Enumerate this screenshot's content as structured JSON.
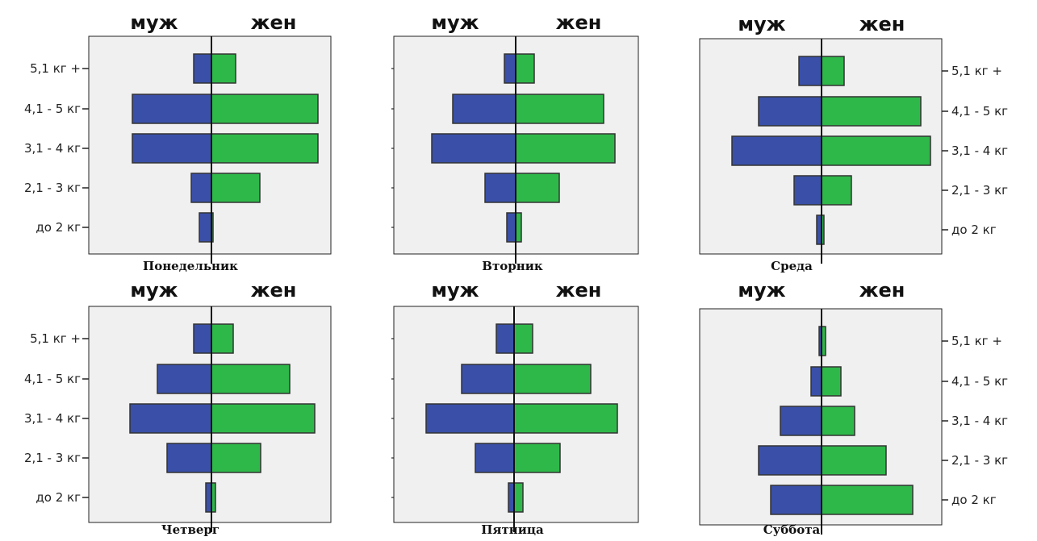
{
  "chart_data": [
    {
      "type": "bar",
      "title": "Понедельник",
      "categories": [
        "5,1 кг +",
        "4,1 - 5 кг",
        "3,1 - 4 кг",
        "2,1 - 3 кг",
        "до 2 кг"
      ],
      "series": [
        {
          "name": "муж",
          "values": [
            22,
            98,
            98,
            25,
            15
          ]
        },
        {
          "name": "жен",
          "values": [
            30,
            132,
            132,
            60,
            2
          ]
        }
      ],
      "category_axis_side": "left"
    },
    {
      "type": "bar",
      "title": "Вторник",
      "categories": [
        "5,1 кг +",
        "4,1 - 5 кг",
        "3,1 - 4 кг",
        "2,1 - 3 кг",
        "до 2 кг"
      ],
      "series": [
        {
          "name": "муж",
          "values": [
            14,
            78,
            104,
            38,
            11
          ]
        },
        {
          "name": "жен",
          "values": [
            23,
            109,
            123,
            54,
            7
          ]
        }
      ],
      "category_axis_side": "none"
    },
    {
      "type": "bar",
      "title": "Среда",
      "categories": [
        "5,1 кг +",
        "4,1 - 5 кг",
        "3,1 - 4 кг",
        "2,1 - 3 кг",
        "до 2 кг"
      ],
      "series": [
        {
          "name": "муж",
          "values": [
            28,
            78,
            111,
            34,
            6
          ]
        },
        {
          "name": "жен",
          "values": [
            28,
            123,
            135,
            37,
            3
          ]
        }
      ],
      "category_axis_side": "right"
    },
    {
      "type": "bar",
      "title": "Четверг",
      "categories": [
        "5,1 кг +",
        "4,1 - 5 кг",
        "3,1 - 4 кг",
        "2,1 - 3 кг",
        "до 2 кг"
      ],
      "series": [
        {
          "name": "муж",
          "values": [
            22,
            67,
            101,
            55,
            7
          ]
        },
        {
          "name": "жен",
          "values": [
            27,
            97,
            128,
            61,
            5
          ]
        }
      ],
      "category_axis_side": "left"
    },
    {
      "type": "bar",
      "title": "Пятница",
      "categories": [
        "5,1 кг +",
        "4,1 - 5 кг",
        "3,1 - 4 кг",
        "2,1 - 3 кг",
        "до 2 кг"
      ],
      "series": [
        {
          "name": "муж",
          "values": [
            22,
            65,
            109,
            48,
            7
          ]
        },
        {
          "name": "жен",
          "values": [
            23,
            95,
            128,
            57,
            11
          ]
        }
      ],
      "category_axis_side": "none"
    },
    {
      "type": "bar",
      "title": "Суббота",
      "categories": [
        "5,1 кг +",
        "4,1 - 5 кг",
        "3,1 - 4 кг",
        "2,1 - 3 кг",
        "до 2 кг"
      ],
      "series": [
        {
          "name": "муж",
          "values": [
            3,
            13,
            51,
            78,
            63
          ]
        },
        {
          "name": "жен",
          "values": [
            5,
            24,
            41,
            80,
            113
          ]
        }
      ],
      "category_axis_side": "right"
    }
  ],
  "style": {
    "male_color": "#3a50a8",
    "female_color": "#2fb84a",
    "plot_background": "#f0f0f0",
    "bar_edge": "#333333"
  }
}
